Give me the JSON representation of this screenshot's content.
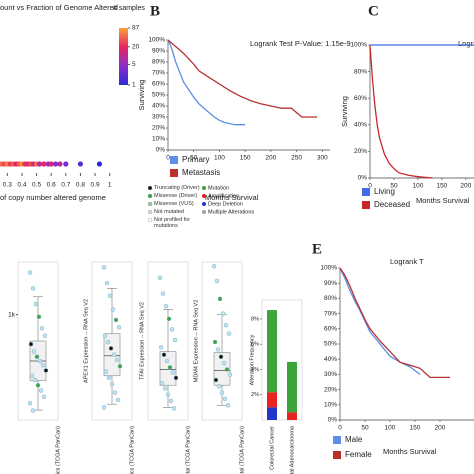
{
  "chart_data": [
    {
      "type": "scatter",
      "title": "ount vs Fraction of Genome Altered",
      "x_label": "of copy number altered genome",
      "x": [
        0.26,
        0.28,
        0.3,
        0.32,
        0.34,
        0.36,
        0.38,
        0.4,
        0.42,
        0.44,
        0.46,
        0.48,
        0.5,
        0.52,
        0.55,
        0.58,
        0.6,
        0.63,
        0.66,
        0.7,
        0.8,
        0.93
      ],
      "y": [
        4,
        4,
        4,
        4,
        4,
        4,
        4,
        4,
        4,
        4,
        4,
        4,
        4,
        4,
        4,
        4,
        4,
        4,
        4,
        4,
        4,
        4
      ],
      "counts": [
        45,
        30,
        60,
        25,
        40,
        18,
        35,
        70,
        22,
        15,
        30,
        12,
        50,
        9,
        20,
        6,
        14,
        4,
        8,
        3,
        2,
        1
      ],
      "xlim": [
        0.25,
        1.05
      ],
      "xticks": [
        0.3,
        0.4,
        0.5,
        0.6,
        0.7,
        0.8,
        0.9,
        1
      ],
      "ylim": [
        0,
        100
      ],
      "colorbar": {
        "title": "# samples",
        "ticks": [
          87,
          20,
          5,
          1
        ],
        "lim": [
          1,
          87
        ],
        "log": true,
        "colors": [
          "#2c2cd6",
          "#8b2fc9",
          "#e8245f",
          "#f9a23a"
        ]
      }
    },
    {
      "type": "line",
      "panel": "B",
      "title": "Logrank Test P-Value: 1.15e-9",
      "x_label": "Months Survival",
      "y_label": "Surviving",
      "xlim": [
        0,
        315
      ],
      "xticks": [
        0,
        50,
        100,
        150,
        200,
        250,
        300
      ],
      "ylim": [
        0,
        100
      ],
      "yticks": [
        {
          "value": 0,
          "label": "0%"
        },
        {
          "value": 10,
          "label": "10%"
        },
        {
          "value": 20,
          "label": "20%"
        },
        {
          "value": 30,
          "label": "30%"
        },
        {
          "value": 40,
          "label": "40%"
        },
        {
          "value": 50,
          "label": "50%"
        },
        {
          "value": 60,
          "label": "60%"
        },
        {
          "value": 70,
          "label": "70%"
        },
        {
          "value": 80,
          "label": "80%"
        },
        {
          "value": 90,
          "label": "90%"
        },
        {
          "value": 100,
          "label": "100%"
        }
      ],
      "series": [
        {
          "name": "Primary",
          "color": "#5b8fe8",
          "x": [
            0,
            5,
            10,
            15,
            20,
            25,
            30,
            40,
            50,
            60,
            70,
            80,
            90,
            100,
            110,
            120,
            130,
            140,
            150
          ],
          "values": [
            100,
            95,
            88,
            80,
            74,
            68,
            62,
            55,
            48,
            42,
            38,
            34,
            30,
            27,
            25,
            24,
            23,
            23,
            23
          ]
        },
        {
          "name": "Metastasis",
          "color": "#b8312f",
          "x": [
            0,
            10,
            20,
            30,
            40,
            50,
            60,
            80,
            100,
            120,
            140,
            160,
            180,
            200,
            220,
            240,
            260,
            290
          ],
          "values": [
            100,
            96,
            92,
            88,
            83,
            78,
            72,
            66,
            60,
            54,
            49,
            45,
            42,
            40,
            38,
            38,
            30,
            30
          ]
        }
      ]
    },
    {
      "type": "line",
      "panel": "C",
      "title": "Logra",
      "x_label": "Months Survival",
      "y_label": "Surviving",
      "xlim": [
        0,
        217
      ],
      "xticks": [
        0,
        50,
        100,
        150,
        200
      ],
      "ylim": [
        0,
        100
      ],
      "yticks": [
        {
          "value": 0,
          "label": "0%"
        },
        {
          "value": 20,
          "label": "20%"
        },
        {
          "value": 40,
          "label": "40%"
        },
        {
          "value": 60,
          "label": "60%"
        },
        {
          "value": 80,
          "label": "80%"
        },
        {
          "value": 100,
          "label": "100%"
        }
      ],
      "series": [
        {
          "name": "Living",
          "color": "#3f6fe0",
          "x": [
            0,
            20,
            40,
            60,
            80,
            100,
            120,
            140,
            160,
            180,
            200,
            215
          ],
          "values": [
            100,
            100,
            100,
            100,
            100,
            100,
            100,
            100,
            100,
            100,
            100,
            100
          ]
        },
        {
          "name": "Deceased",
          "color": "#c62828",
          "x": [
            0,
            5,
            10,
            15,
            20,
            30,
            40,
            50,
            60,
            80,
            100,
            130
          ],
          "values": [
            100,
            75,
            55,
            40,
            30,
            18,
            11,
            7,
            4,
            2,
            1,
            0
          ]
        }
      ]
    },
    {
      "type": "box",
      "ylim": [
        0,
        1500
      ],
      "yticks": [
        {
          "value": 1000,
          "label": "1k"
        }
      ],
      "panels": [
        {
          "x_label": "Genomics (TCGA PanCan)",
          "stats": {
            "whisker_low": 94,
            "q1": 375,
            "median": 560,
            "q3": 750,
            "whisker_high": 1170
          },
          "points": [
            1400,
            1250,
            1100,
            980,
            870,
            800,
            720,
            650,
            600,
            560,
            520,
            470,
            420,
            380,
            330,
            280,
            220,
            160,
            90
          ],
          "point_colors": [
            "#bfe3f0",
            "#bfe3f0",
            "#bfe3f0",
            "#3aa63a",
            "#bfe3f0",
            "#bfe3f0",
            "#111111",
            "#bfe3f0",
            "#3aa63a",
            "#bfe3f0",
            "#bfe3f0",
            "#111111",
            "#bfe3f0",
            "#bfe3f0",
            "#3aa63a",
            "#bfe3f0",
            "#bfe3f0",
            "#bfe3f0",
            "#bfe3f0"
          ]
        },
        {
          "y_label": "APEX1 Expression -- RNA Seq V2",
          "x_label": "Genomics (TCGA PanCan)",
          "stats": {
            "whisker_low": 150,
            "q1": 420,
            "median": 610,
            "q3": 820,
            "whisker_high": 1250
          },
          "points": [
            1450,
            1300,
            1180,
            1050,
            950,
            880,
            800,
            740,
            680,
            620,
            570,
            510,
            460,
            400,
            340,
            260,
            190,
            120
          ],
          "point_colors": [
            "#bfe3f0",
            "#bfe3f0",
            "#bfe3f0",
            "#bfe3f0",
            "#3aa63a",
            "#bfe3f0",
            "#bfe3f0",
            "#bfe3f0",
            "#111111",
            "#bfe3f0",
            "#bfe3f0",
            "#3aa63a",
            "#bfe3f0",
            "#bfe3f0",
            "#bfe3f0",
            "#bfe3f0",
            "#bfe3f0",
            "#bfe3f0"
          ]
        },
        {
          "y_label": "TFAI Expression -- RNA Seq V2",
          "x_label": "Colorectal (TCGA PanCan)",
          "stats": {
            "whisker_low": 120,
            "q1": 330,
            "median": 480,
            "q3": 650,
            "whisker_high": 1050
          },
          "points": [
            1350,
            1200,
            1080,
            960,
            860,
            760,
            690,
            620,
            560,
            500,
            450,
            400,
            350,
            300,
            240,
            180,
            110
          ],
          "point_colors": [
            "#bfe3f0",
            "#bfe3f0",
            "#bfe3f0",
            "#3aa63a",
            "#bfe3f0",
            "#bfe3f0",
            "#bfe3f0",
            "#111111",
            "#bfe3f0",
            "#3aa63a",
            "#bfe3f0",
            "#111111",
            "#bfe3f0",
            "#bfe3f0",
            "#bfe3f0",
            "#bfe3f0",
            "#bfe3f0"
          ]
        },
        {
          "y_label": "MDM4 Expression -- RNA Seq V2",
          "x_label": "Colorectal (TCGA PanCan)",
          "stats": {
            "whisker_low": 140,
            "q1": 330,
            "median": 470,
            "q3": 640,
            "whisker_high": 1000
          },
          "points": [
            1460,
            1320,
            1150,
            1010,
            900,
            820,
            740,
            670,
            600,
            540,
            480,
            430,
            380,
            320,
            260,
            200,
            140
          ],
          "point_colors": [
            "#bfe3f0",
            "#bfe3f0",
            "#3aa63a",
            "#bfe3f0",
            "#bfe3f0",
            "#bfe3f0",
            "#3aa63a",
            "#bfe3f0",
            "#111111",
            "#bfe3f0",
            "#3aa63a",
            "#bfe3f0",
            "#111111",
            "#bfe3f0",
            "#bfe3f0",
            "#bfe3f0",
            "#bfe3f0"
          ]
        }
      ],
      "point_legend": [
        {
          "name": "Truncating (Driver)",
          "color": "#111111"
        },
        {
          "name": "Missense (Driver)",
          "color": "#3aa63a"
        },
        {
          "name": "Missense (VUS)",
          "color": "#9cc79c"
        },
        {
          "name": "Not mutated",
          "color": "#dddddd"
        },
        {
          "name": "Not profiled for mutations",
          "color": "#ffffff"
        }
      ]
    },
    {
      "type": "bar",
      "y_label": "Alteration Frequency",
      "categories": [
        "Colorectal Cancer",
        "Colorectal Adenocarcinoma"
      ],
      "ylim": [
        0,
        9.5
      ],
      "yticks": [
        {
          "value": 2,
          "label": "2%"
        },
        {
          "value": 4,
          "label": "4%"
        },
        {
          "value": 6,
          "label": "6%"
        },
        {
          "value": 8,
          "label": "8%"
        }
      ],
      "series": [
        {
          "name": "Mutation",
          "color": "#3ba43a",
          "values": [
            6.5,
            4.0
          ]
        },
        {
          "name": "Amplification",
          "color": "#e8231f",
          "values": [
            1.2,
            0.6
          ]
        },
        {
          "name": "Deep Deletion",
          "color": "#2436c9",
          "values": [
            1.0,
            0
          ]
        },
        {
          "name": "Multiple Alterations",
          "color": "#a0a0a0",
          "values": [
            0,
            0
          ]
        }
      ]
    },
    {
      "type": "line",
      "panel": "E",
      "title": "Logrank T",
      "x_label": "Months Survival",
      "xlim": [
        0,
        268
      ],
      "xticks": [
        0,
        50,
        100,
        150,
        200
      ],
      "ylim": [
        0,
        100
      ],
      "yticks": [
        {
          "value": 0,
          "label": "0%"
        },
        {
          "value": 10,
          "label": "10%"
        },
        {
          "value": 20,
          "label": "20%"
        },
        {
          "value": 30,
          "label": "30%"
        },
        {
          "value": 40,
          "label": "40%"
        },
        {
          "value": 50,
          "label": "50%"
        },
        {
          "value": 60,
          "label": "60%"
        },
        {
          "value": 70,
          "label": "70%"
        },
        {
          "value": 80,
          "label": "80%"
        },
        {
          "value": 90,
          "label": "90%"
        },
        {
          "value": 100,
          "label": "100%"
        }
      ],
      "series": [
        {
          "name": "Male",
          "color": "#5b8fe8",
          "x": [
            0,
            10,
            20,
            30,
            40,
            50,
            60,
            80,
            100,
            120,
            140,
            160
          ],
          "values": [
            100,
            93,
            85,
            78,
            72,
            65,
            58,
            50,
            42,
            38,
            35,
            30
          ]
        },
        {
          "name": "Female",
          "color": "#b8312f",
          "x": [
            0,
            10,
            20,
            30,
            40,
            50,
            60,
            80,
            100,
            120,
            140,
            160,
            180,
            200,
            220
          ],
          "values": [
            100,
            95,
            88,
            80,
            73,
            66,
            60,
            52,
            45,
            38,
            36,
            34,
            28,
            28,
            28
          ]
        }
      ]
    }
  ]
}
